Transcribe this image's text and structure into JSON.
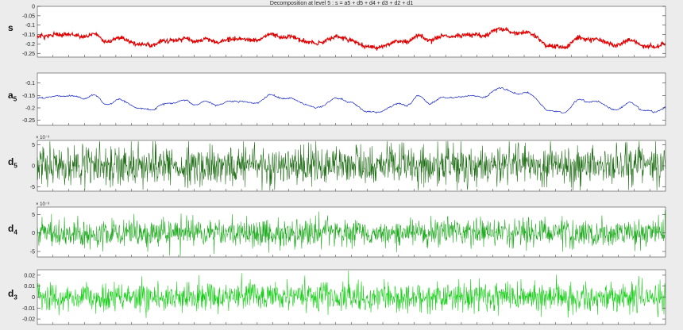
{
  "title": "Decomposition at level 5 : s = a5 + d5 + d4 + d3 + d2 + d1",
  "chart_data": [
    {
      "type": "line",
      "name_main": "s",
      "name_sub": "",
      "color": "#e00000",
      "ylim": [
        -0.27,
        0
      ],
      "ytick_labels": [
        "0",
        "-0.05",
        "-0.1",
        "-0.15",
        "-0.2",
        "-0.25"
      ],
      "ytick_values": [
        0,
        -0.05,
        -0.1,
        -0.15,
        -0.2,
        -0.25
      ],
      "exponent": "",
      "signal": "lowfreq_noisy",
      "mean": -0.17,
      "amplitude": 0.05,
      "noise": 0.006,
      "grid": false
    },
    {
      "type": "line",
      "name_main": "a",
      "name_sub": "5",
      "color": "#1020c0",
      "ylim": [
        -0.27,
        -0.06
      ],
      "ytick_labels": [
        "-0.1",
        "-0.15",
        "-0.2",
        "-0.25"
      ],
      "ytick_values": [
        -0.1,
        -0.15,
        -0.2,
        -0.25
      ],
      "exponent": "",
      "signal": "lowfreq_smooth",
      "mean": -0.17,
      "amplitude": 0.05,
      "noise": 0.0015,
      "grid": false
    },
    {
      "type": "line",
      "name_main": "d",
      "name_sub": "5",
      "color": "#1a6a10",
      "ylim": [
        -6,
        6
      ],
      "ytick_labels": [
        "5",
        "0",
        "-5"
      ],
      "ytick_values": [
        5,
        0,
        -5
      ],
      "exponent": "× 10⁻³",
      "signal": "detail",
      "mean": 0,
      "amplitude": 2.4,
      "noise": 0,
      "grid": false
    },
    {
      "type": "line",
      "name_main": "d",
      "name_sub": "4",
      "color": "#18a818",
      "ylim": [
        -6.5,
        7
      ],
      "ytick_labels": [
        "5",
        "0",
        "-5"
      ],
      "ytick_values": [
        5,
        0,
        -5
      ],
      "exponent": "× 10⁻³",
      "signal": "detail",
      "mean": 0,
      "amplitude": 1.9,
      "noise": 0,
      "grid": false
    },
    {
      "type": "line",
      "name_main": "d",
      "name_sub": "3",
      "color": "#10cc10",
      "ylim": [
        -0.025,
        0.025
      ],
      "ytick_labels": [
        "0.02",
        "0.01",
        "0",
        "-0.01",
        "-0.02"
      ],
      "ytick_values": [
        0.02,
        0.01,
        0,
        -0.01,
        -0.02
      ],
      "exponent": "",
      "signal": "detail",
      "mean": 0,
      "amplitude": 0.0065,
      "noise": 0,
      "grid": false
    }
  ]
}
